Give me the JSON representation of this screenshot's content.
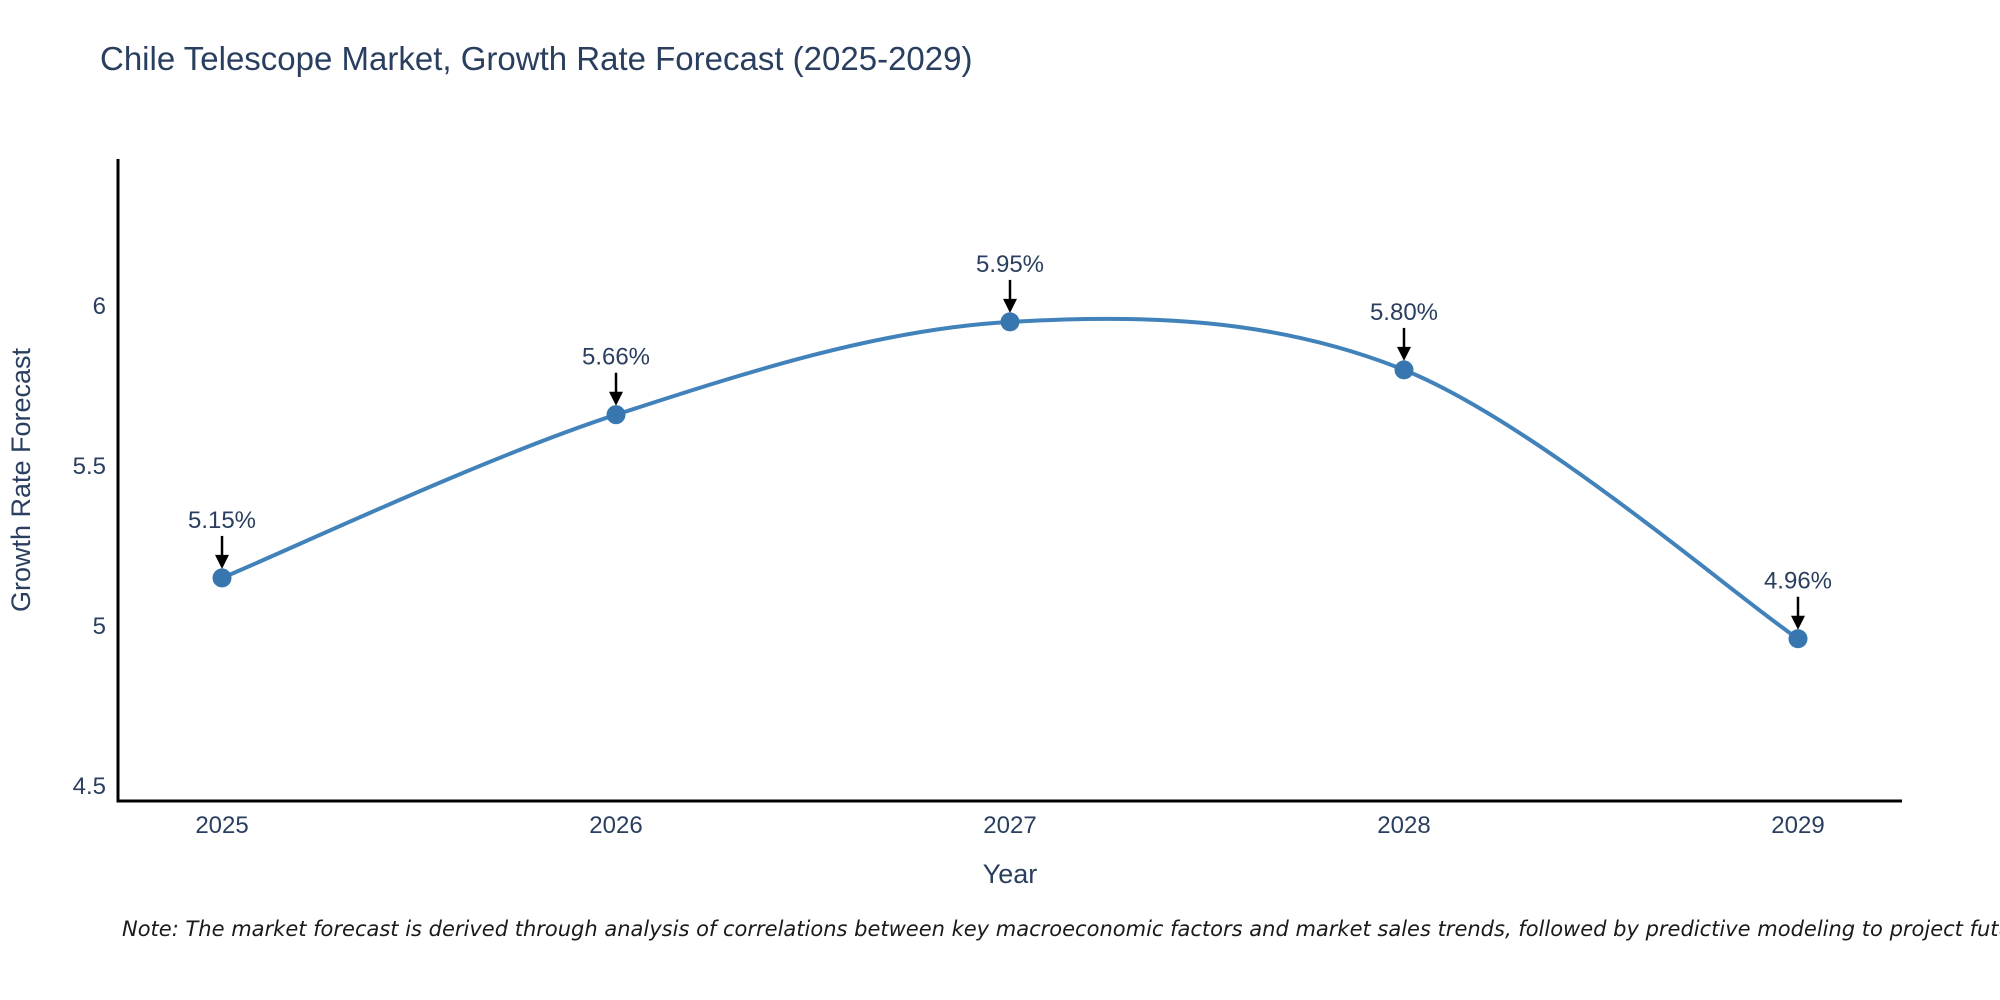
{
  "title": "Chile Telescope Market, Growth Rate Forecast (2025-2029)",
  "note": "Note: The market forecast is derived through analysis of correlations between key macroeconomic factors and market sales trends, followed by predictive modeling to project future sales",
  "chart_data": {
    "type": "line",
    "title": "Chile Telescope Market, Growth Rate Forecast (2025-2029)",
    "x": [
      2025,
      2026,
      2027,
      2028,
      2029
    ],
    "values": [
      5.15,
      5.66,
      5.95,
      5.8,
      4.96
    ],
    "point_labels": [
      "5.15%",
      "5.66%",
      "5.95%",
      "5.80%",
      "4.96%"
    ],
    "xlabel": "Year",
    "ylabel": "Growth Rate Forecast",
    "xtick_labels": [
      "2025",
      "2026",
      "2027",
      "2028",
      "2029"
    ],
    "ytick_values": [
      4.5,
      5,
      5.5,
      6
    ],
    "ytick_labels": [
      "4.5",
      "5",
      "5.5",
      "6"
    ],
    "x_range": [
      2024.736,
      2029.264
    ],
    "y_range": [
      4.453,
      6.459
    ],
    "grid": false,
    "legend_position": "none",
    "line_shape": "spline",
    "line_color": "#4282bb",
    "marker_color": "#3776ae",
    "axis_color": "#000000",
    "text_color": "#2a3f5f",
    "annotation_arrow_color": "#000000",
    "background_color": "#ffffff"
  }
}
